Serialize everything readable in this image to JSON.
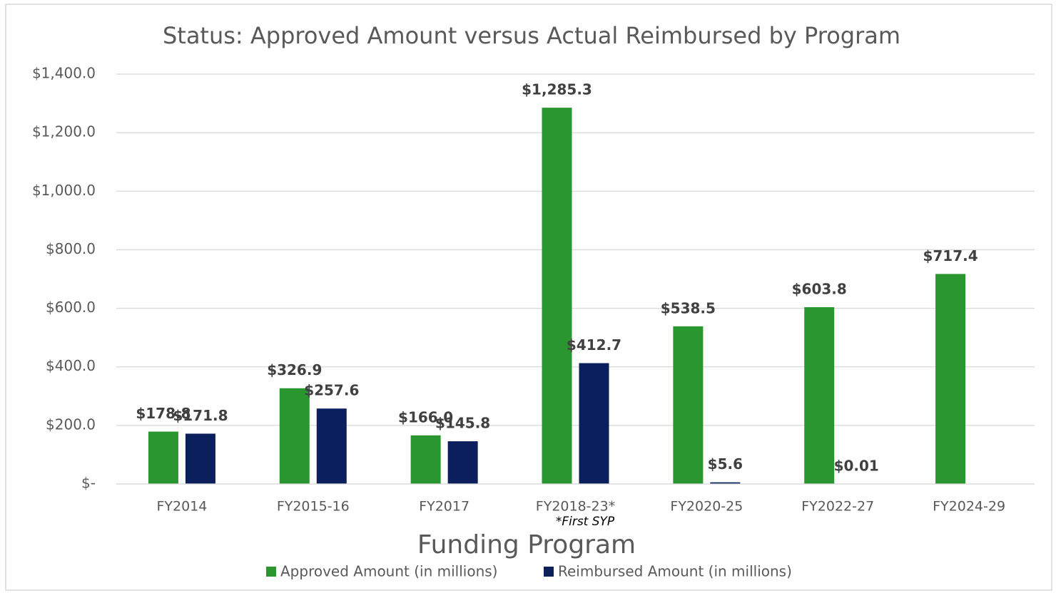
{
  "chart_data": {
    "type": "bar",
    "title": "Status: Approved Amount versus Actual Reimbursed by Program",
    "x_label": "Funding Program",
    "annotations": [
      "*First SYP"
    ],
    "categories": [
      "FY2014",
      "FY2015-16",
      "FY2017",
      "FY2018-23*",
      "FY2020-25",
      "FY2022-27",
      "FY2024-29"
    ],
    "series": [
      {
        "name": "Approved Amount (in millions)",
        "color": "#2a9630",
        "values": [
          178.8,
          326.9,
          166.0,
          1285.3,
          538.5,
          603.8,
          717.4
        ],
        "value_labels": [
          "$178.8",
          "$326.9",
          "$166.0",
          "$1,285.3",
          "$538.5",
          "$603.8",
          "$717.4"
        ]
      },
      {
        "name": "Reimbursed Amount (in millions)",
        "color": "#0a1f5c",
        "values": [
          171.8,
          257.6,
          145.8,
          412.7,
          5.6,
          0.01,
          null
        ],
        "value_labels": [
          "$171.8",
          "$257.6",
          "$145.8",
          "$412.7",
          "$5.6",
          "$0.01",
          null
        ]
      }
    ],
    "ylim": [
      0,
      1400
    ],
    "yticks": [
      {
        "value": 0,
        "label": "$-"
      },
      {
        "value": 200,
        "label": "$200.0"
      },
      {
        "value": 400,
        "label": "$400.0"
      },
      {
        "value": 600,
        "label": "$600.0"
      },
      {
        "value": 800,
        "label": "$800.0"
      },
      {
        "value": 1000,
        "label": "$1,000.0"
      },
      {
        "value": 1200,
        "label": "$1,200.0"
      },
      {
        "value": 1400,
        "label": "$1,400.0"
      }
    ],
    "grid": true,
    "legend": "bottom"
  }
}
